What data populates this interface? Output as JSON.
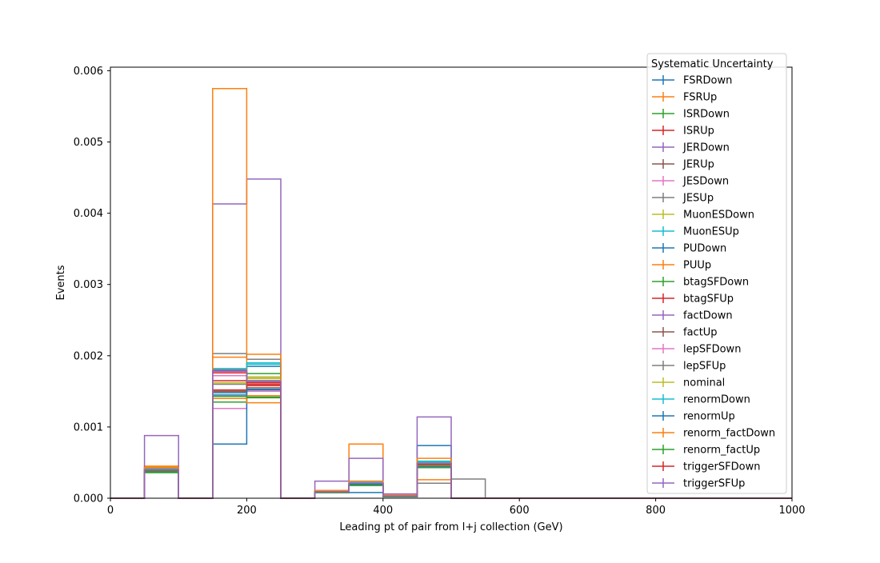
{
  "chart_data": {
    "type": "histogram-step",
    "title": "",
    "xlabel": "Leading pt of pair from l+j collection (GeV)",
    "ylabel": "Events",
    "xlim": [
      0,
      1000
    ],
    "ylim": [
      0,
      0.00605
    ],
    "x_ticks": [
      0,
      200,
      400,
      600,
      800,
      1000
    ],
    "x_tick_labels": [
      "0",
      "200",
      "400",
      "600",
      "800",
      "1000"
    ],
    "y_ticks": [
      0,
      0.001,
      0.002,
      0.003,
      0.004,
      0.005,
      0.006
    ],
    "y_tick_labels": [
      "0.000",
      "0.001",
      "0.002",
      "0.003",
      "0.004",
      "0.005",
      "0.006"
    ],
    "grid": false,
    "bin_edges": [
      0,
      50,
      100,
      150,
      200,
      250,
      300,
      350,
      400,
      450,
      500,
      550,
      600,
      650,
      700,
      750,
      800,
      850,
      900,
      950,
      1000
    ],
    "legend": {
      "title": "Systematic Uncertainty",
      "placement": "top-right"
    },
    "series": [
      {
        "name": "FSRDown",
        "color": "#1f77b4",
        "values": [
          0,
          0.00038,
          0,
          0.00148,
          0.00152,
          0,
          8e-05,
          0.00019,
          2e-05,
          0.00045,
          0,
          0,
          0,
          0,
          0,
          0,
          0,
          0,
          0,
          0
        ]
      },
      {
        "name": "FSRUp",
        "color": "#ff7f0e",
        "values": [
          0,
          0.00039,
          0,
          0.0014,
          0.00144,
          0,
          9e-05,
          0.0002,
          3e-05,
          0.00046,
          0,
          0,
          0,
          0,
          0,
          0,
          0,
          0,
          0,
          0
        ]
      },
      {
        "name": "ISRDown",
        "color": "#2ca02c",
        "values": [
          0,
          0.00036,
          0,
          0.00135,
          0.00142,
          0,
          8e-05,
          0.00018,
          2e-05,
          0.00044,
          0,
          0,
          0,
          0,
          0,
          0,
          0,
          0,
          0,
          0
        ]
      },
      {
        "name": "ISRUp",
        "color": "#d62728",
        "values": [
          0,
          0.0004,
          0,
          0.00165,
          0.00158,
          0,
          9e-05,
          0.0002,
          3e-05,
          0.00047,
          0,
          0,
          0,
          0,
          0,
          0,
          0,
          0,
          0,
          0
        ]
      },
      {
        "name": "JERDown",
        "color": "#9467bd",
        "values": [
          0,
          0.0004,
          0,
          0.00178,
          0.00165,
          0,
          9e-05,
          0.00021,
          3e-05,
          0.00048,
          0,
          0,
          0,
          0,
          0,
          0,
          0,
          0,
          0,
          0
        ]
      },
      {
        "name": "JERUp",
        "color": "#8c564b",
        "values": [
          0,
          0.00041,
          0,
          0.0018,
          0.0017,
          0,
          0.0001,
          0.00021,
          3e-05,
          0.00049,
          0,
          0,
          0,
          0,
          0,
          0,
          0,
          0,
          0,
          0
        ]
      },
      {
        "name": "JESDown",
        "color": "#e377c2",
        "values": [
          0,
          0.00037,
          0,
          0.00126,
          0.0015,
          0,
          8e-05,
          0.00019,
          2e-05,
          0.00044,
          0,
          0,
          0,
          0,
          0,
          0,
          0,
          0,
          0,
          0
        ]
      },
      {
        "name": "JESUp",
        "color": "#7f7f7f",
        "values": [
          0,
          0.00042,
          0,
          0.00203,
          0.00195,
          0,
          0.0001,
          0.00022,
          4e-05,
          0.00021,
          0.00027,
          0,
          0,
          0,
          0,
          0,
          0,
          0,
          0,
          0
        ]
      },
      {
        "name": "MuonESDown",
        "color": "#bcbd22",
        "values": [
          0,
          0.00044,
          0,
          0.00162,
          0.00168,
          0,
          9e-05,
          0.00021,
          3e-05,
          0.0005,
          0,
          0,
          0,
          0,
          0,
          0,
          0,
          0,
          0,
          0
        ]
      },
      {
        "name": "MuonESUp",
        "color": "#17becf",
        "values": [
          0,
          0.0004,
          0,
          0.00182,
          0.00188,
          0,
          0.0001,
          0.00022,
          3e-05,
          0.00052,
          0,
          0,
          0,
          0,
          0,
          0,
          0,
          0,
          0,
          0
        ]
      },
      {
        "name": "PUDown",
        "color": "#1f77b4",
        "values": [
          0,
          0.00038,
          0,
          0.00076,
          0.00185,
          0,
          8e-05,
          8e-05,
          2e-05,
          0.00074,
          0,
          0,
          0,
          0,
          0,
          0,
          0,
          0,
          0,
          0
        ]
      },
      {
        "name": "PUUp",
        "color": "#ff7f0e",
        "values": [
          0,
          0.00045,
          0,
          0.00198,
          0.00134,
          0,
          0.00011,
          0.00076,
          4e-05,
          0.00026,
          0,
          0,
          0,
          0,
          0,
          0,
          0,
          0,
          0,
          0
        ]
      },
      {
        "name": "btagSFDown",
        "color": "#2ca02c",
        "values": [
          0,
          0.00038,
          0,
          0.0015,
          0.00175,
          0,
          9e-05,
          0.0002,
          3e-05,
          0.00047,
          0,
          0,
          0,
          0,
          0,
          0,
          0,
          0,
          0,
          0
        ]
      },
      {
        "name": "btagSFUp",
        "color": "#d62728",
        "values": [
          0,
          0.00039,
          0,
          0.00152,
          0.0016,
          0,
          9e-05,
          0.0002,
          3e-05,
          0.00048,
          0,
          0,
          0,
          0,
          0,
          0,
          0,
          0,
          0,
          0
        ]
      },
      {
        "name": "factDown",
        "color": "#9467bd",
        "values": [
          0,
          0.00088,
          0,
          0.00413,
          0.00448,
          0,
          0.00024,
          0.00056,
          6e-05,
          0.00114,
          0,
          0,
          0,
          0,
          0,
          0,
          0,
          0,
          0,
          0
        ]
      },
      {
        "name": "factUp",
        "color": "#8c564b",
        "values": [
          0,
          0.00039,
          0,
          0.0015,
          0.00155,
          0,
          9e-05,
          0.0002,
          3e-05,
          0.00047,
          0,
          0,
          0,
          0,
          0,
          0,
          0,
          0,
          0,
          0
        ]
      },
      {
        "name": "lepSFDown",
        "color": "#e377c2",
        "values": [
          0,
          0.0004,
          0,
          0.00172,
          0.00163,
          0,
          9e-05,
          0.00021,
          3e-05,
          0.00049,
          0,
          0,
          0,
          0,
          0,
          0,
          0,
          0,
          0,
          0
        ]
      },
      {
        "name": "lepSFUp",
        "color": "#7f7f7f",
        "values": [
          0,
          0.0004,
          0,
          0.0016,
          0.00165,
          0,
          9e-05,
          0.00021,
          3e-05,
          0.00049,
          0,
          0,
          0,
          0,
          0,
          0,
          0,
          0,
          0,
          0
        ]
      },
      {
        "name": "nominal",
        "color": "#bcbd22",
        "values": [
          0,
          0.00041,
          0,
          0.00162,
          0.0017,
          0,
          0.0001,
          0.00021,
          3e-05,
          0.0005,
          0,
          0,
          0,
          0,
          0,
          0,
          0,
          0,
          0,
          0
        ]
      },
      {
        "name": "renormDown",
        "color": "#17becf",
        "values": [
          0,
          0.00041,
          0,
          0.00182,
          0.0019,
          0,
          0.0001,
          0.00022,
          3e-05,
          0.00051,
          0,
          0,
          0,
          0,
          0,
          0,
          0,
          0,
          0,
          0
        ]
      },
      {
        "name": "renormUp",
        "color": "#1f77b4",
        "values": [
          0,
          0.00036,
          0,
          0.00145,
          0.00153,
          0,
          8e-05,
          0.00019,
          2e-05,
          0.00044,
          0,
          0,
          0,
          0,
          0,
          0,
          0,
          0,
          0,
          0
        ]
      },
      {
        "name": "renorm_factDown",
        "color": "#ff7f0e",
        "values": [
          0,
          0.00043,
          0,
          0.00575,
          0.00202,
          0,
          0.00011,
          0.00024,
          4e-05,
          0.00056,
          0,
          0,
          0,
          0,
          0,
          0,
          0,
          0,
          0,
          0
        ]
      },
      {
        "name": "renorm_factUp",
        "color": "#2ca02c",
        "values": [
          0,
          0.00036,
          0,
          0.00143,
          0.00141,
          0,
          8e-05,
          0.00018,
          2e-05,
          0.00043,
          0,
          0,
          0,
          0,
          0,
          0,
          0,
          0,
          0,
          0
        ]
      },
      {
        "name": "triggerSFDown",
        "color": "#d62728",
        "values": [
          0,
          0.0004,
          0,
          0.00176,
          0.00162,
          0,
          9e-05,
          0.00021,
          3e-05,
          0.00049,
          0,
          0,
          0,
          0,
          0,
          0,
          0,
          0,
          0,
          0
        ]
      },
      {
        "name": "triggerSFUp",
        "color": "#9467bd",
        "values": [
          0,
          0.0004,
          0,
          0.00179,
          0.00164,
          0,
          9e-05,
          0.00021,
          3e-05,
          0.00049,
          0,
          0,
          0,
          0,
          0,
          0,
          0,
          0,
          0,
          0
        ]
      }
    ]
  }
}
